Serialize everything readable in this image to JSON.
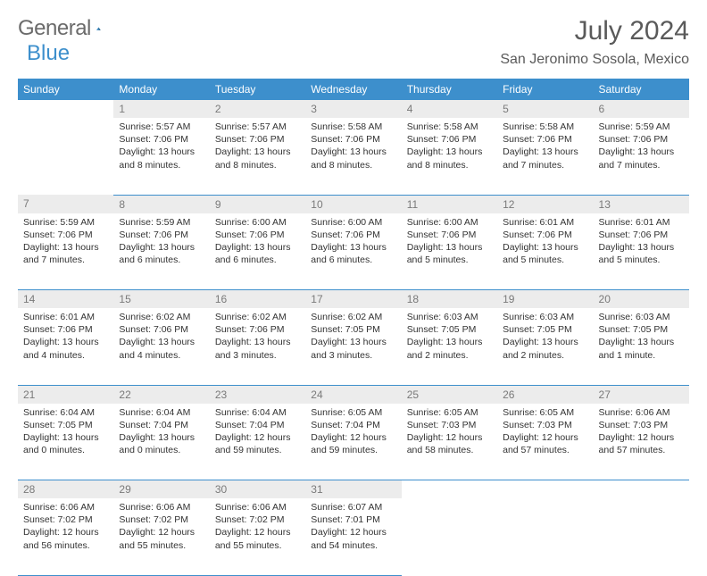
{
  "brand": {
    "part1": "General",
    "part2": "Blue"
  },
  "header": {
    "month_year": "July 2024",
    "location": "San Jeronimo Sosola, Mexico"
  },
  "colors": {
    "accent": "#3d8fcc",
    "header_text": "#ffffff",
    "daynum_bg": "#ececec"
  },
  "day_headers": [
    "Sunday",
    "Monday",
    "Tuesday",
    "Wednesday",
    "Thursday",
    "Friday",
    "Saturday"
  ],
  "weeks": [
    {
      "nums": [
        "",
        "1",
        "2",
        "3",
        "4",
        "5",
        "6"
      ],
      "cells": [
        null,
        {
          "sunrise": "5:57 AM",
          "sunset": "7:06 PM",
          "daylight": "13 hours and 8 minutes."
        },
        {
          "sunrise": "5:57 AM",
          "sunset": "7:06 PM",
          "daylight": "13 hours and 8 minutes."
        },
        {
          "sunrise": "5:58 AM",
          "sunset": "7:06 PM",
          "daylight": "13 hours and 8 minutes."
        },
        {
          "sunrise": "5:58 AM",
          "sunset": "7:06 PM",
          "daylight": "13 hours and 8 minutes."
        },
        {
          "sunrise": "5:58 AM",
          "sunset": "7:06 PM",
          "daylight": "13 hours and 7 minutes."
        },
        {
          "sunrise": "5:59 AM",
          "sunset": "7:06 PM",
          "daylight": "13 hours and 7 minutes."
        }
      ]
    },
    {
      "nums": [
        "7",
        "8",
        "9",
        "10",
        "11",
        "12",
        "13"
      ],
      "cells": [
        {
          "sunrise": "5:59 AM",
          "sunset": "7:06 PM",
          "daylight": "13 hours and 7 minutes."
        },
        {
          "sunrise": "5:59 AM",
          "sunset": "7:06 PM",
          "daylight": "13 hours and 6 minutes."
        },
        {
          "sunrise": "6:00 AM",
          "sunset": "7:06 PM",
          "daylight": "13 hours and 6 minutes."
        },
        {
          "sunrise": "6:00 AM",
          "sunset": "7:06 PM",
          "daylight": "13 hours and 6 minutes."
        },
        {
          "sunrise": "6:00 AM",
          "sunset": "7:06 PM",
          "daylight": "13 hours and 5 minutes."
        },
        {
          "sunrise": "6:01 AM",
          "sunset": "7:06 PM",
          "daylight": "13 hours and 5 minutes."
        },
        {
          "sunrise": "6:01 AM",
          "sunset": "7:06 PM",
          "daylight": "13 hours and 5 minutes."
        }
      ]
    },
    {
      "nums": [
        "14",
        "15",
        "16",
        "17",
        "18",
        "19",
        "20"
      ],
      "cells": [
        {
          "sunrise": "6:01 AM",
          "sunset": "7:06 PM",
          "daylight": "13 hours and 4 minutes."
        },
        {
          "sunrise": "6:02 AM",
          "sunset": "7:06 PM",
          "daylight": "13 hours and 4 minutes."
        },
        {
          "sunrise": "6:02 AM",
          "sunset": "7:06 PM",
          "daylight": "13 hours and 3 minutes."
        },
        {
          "sunrise": "6:02 AM",
          "sunset": "7:05 PM",
          "daylight": "13 hours and 3 minutes."
        },
        {
          "sunrise": "6:03 AM",
          "sunset": "7:05 PM",
          "daylight": "13 hours and 2 minutes."
        },
        {
          "sunrise": "6:03 AM",
          "sunset": "7:05 PM",
          "daylight": "13 hours and 2 minutes."
        },
        {
          "sunrise": "6:03 AM",
          "sunset": "7:05 PM",
          "daylight": "13 hours and 1 minute."
        }
      ]
    },
    {
      "nums": [
        "21",
        "22",
        "23",
        "24",
        "25",
        "26",
        "27"
      ],
      "cells": [
        {
          "sunrise": "6:04 AM",
          "sunset": "7:05 PM",
          "daylight": "13 hours and 0 minutes."
        },
        {
          "sunrise": "6:04 AM",
          "sunset": "7:04 PM",
          "daylight": "13 hours and 0 minutes."
        },
        {
          "sunrise": "6:04 AM",
          "sunset": "7:04 PM",
          "daylight": "12 hours and 59 minutes."
        },
        {
          "sunrise": "6:05 AM",
          "sunset": "7:04 PM",
          "daylight": "12 hours and 59 minutes."
        },
        {
          "sunrise": "6:05 AM",
          "sunset": "7:03 PM",
          "daylight": "12 hours and 58 minutes."
        },
        {
          "sunrise": "6:05 AM",
          "sunset": "7:03 PM",
          "daylight": "12 hours and 57 minutes."
        },
        {
          "sunrise": "6:06 AM",
          "sunset": "7:03 PM",
          "daylight": "12 hours and 57 minutes."
        }
      ]
    },
    {
      "nums": [
        "28",
        "29",
        "30",
        "31",
        "",
        "",
        ""
      ],
      "cells": [
        {
          "sunrise": "6:06 AM",
          "sunset": "7:02 PM",
          "daylight": "12 hours and 56 minutes."
        },
        {
          "sunrise": "6:06 AM",
          "sunset": "7:02 PM",
          "daylight": "12 hours and 55 minutes."
        },
        {
          "sunrise": "6:06 AM",
          "sunset": "7:02 PM",
          "daylight": "12 hours and 55 minutes."
        },
        {
          "sunrise": "6:07 AM",
          "sunset": "7:01 PM",
          "daylight": "12 hours and 54 minutes."
        },
        null,
        null,
        null
      ]
    }
  ],
  "labels": {
    "sunrise": "Sunrise:",
    "sunset": "Sunset:",
    "daylight": "Daylight:"
  }
}
